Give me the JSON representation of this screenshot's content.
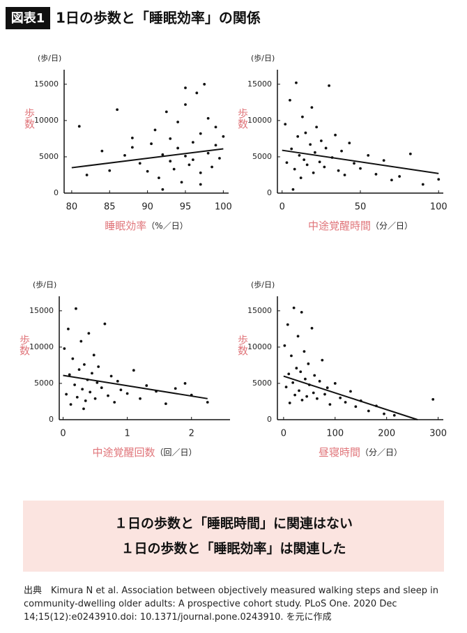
{
  "header": {
    "badge": "図表1",
    "title": "1日の歩数と「睡眠効率」の関係"
  },
  "chart_data": [
    {
      "type": "scatter",
      "y_unit": "(歩/日)",
      "ylabel": "歩数",
      "xlabel": "睡眠効率",
      "x_unit": "（%／日）",
      "xlim": [
        79,
        100.7
      ],
      "xticks": [
        80,
        85,
        90,
        95,
        100
      ],
      "ylim": [
        0,
        17000
      ],
      "yticks": [
        0,
        5000,
        10000,
        15000
      ],
      "color": "#111111",
      "x": [
        81,
        82,
        84,
        85,
        86,
        87,
        88,
        89,
        90,
        90.5,
        91,
        91.5,
        92,
        92.5,
        93,
        93,
        93.5,
        94,
        94,
        94.5,
        95,
        95,
        95.5,
        96,
        96,
        96.5,
        97,
        97,
        97.5,
        98,
        98,
        98.5,
        99,
        99,
        99.5,
        100,
        88,
        92,
        95,
        97
      ],
      "values": [
        9200,
        2500,
        5800,
        3100,
        11500,
        5200,
        7600,
        4100,
        3000,
        6800,
        8700,
        2100,
        5300,
        11200,
        4400,
        7500,
        3300,
        6200,
        9800,
        1500,
        5100,
        12200,
        3900,
        7000,
        4600,
        13800,
        2800,
        8200,
        15000,
        5500,
        10300,
        3600,
        6600,
        9100,
        4800,
        7800,
        6300,
        500,
        14500,
        1200
      ],
      "trend": {
        "x": [
          80,
          100
        ],
        "values": [
          3500,
          6100
        ]
      }
    },
    {
      "type": "scatter",
      "y_unit": "(歩/日)",
      "ylabel": "歩数",
      "xlabel": "中途覚醒時間",
      "x_unit": "（分／日）",
      "xlim": [
        -3,
        103
      ],
      "xticks": [
        0,
        50,
        100
      ],
      "ylim": [
        0,
        17000
      ],
      "yticks": [
        0,
        5000,
        10000,
        15000
      ],
      "color": "#111111",
      "x": [
        2,
        3,
        5,
        6,
        8,
        9,
        10,
        11,
        12,
        13,
        14,
        15,
        16,
        18,
        19,
        20,
        21,
        22,
        24,
        25,
        27,
        28,
        30,
        32,
        34,
        36,
        38,
        40,
        43,
        46,
        50,
        55,
        60,
        65,
        70,
        75,
        82,
        90,
        100,
        7
      ],
      "values": [
        9500,
        4200,
        12800,
        6100,
        3300,
        15200,
        7800,
        5200,
        2100,
        10500,
        4600,
        8300,
        3900,
        6700,
        11800,
        2800,
        5600,
        9100,
        4300,
        7200,
        3600,
        6200,
        14800,
        4900,
        8000,
        3100,
        5800,
        2500,
        6900,
        4100,
        3400,
        5200,
        2600,
        4500,
        1800,
        2300,
        5400,
        1200,
        1900,
        500
      ],
      "trend": {
        "x": [
          0,
          100
        ],
        "values": [
          5900,
          2700
        ]
      }
    },
    {
      "type": "scatter",
      "y_unit": "(歩/日)",
      "ylabel": "歩数",
      "xlabel": "中途覚醒回数",
      "x_unit": "（回／日）",
      "xlim": [
        -0.06,
        2.6
      ],
      "xticks": [
        0,
        1,
        2
      ],
      "ylim": [
        0,
        17000
      ],
      "yticks": [
        0,
        5000,
        10000,
        15000
      ],
      "color": "#111111",
      "x": [
        0.02,
        0.05,
        0.08,
        0.1,
        0.12,
        0.15,
        0.18,
        0.2,
        0.22,
        0.25,
        0.28,
        0.3,
        0.33,
        0.35,
        0.38,
        0.4,
        0.42,
        0.45,
        0.48,
        0.5,
        0.53,
        0.55,
        0.6,
        0.65,
        0.7,
        0.75,
        0.8,
        0.85,
        0.9,
        1.0,
        1.1,
        1.2,
        1.3,
        1.45,
        1.6,
        1.75,
        1.9,
        2.0,
        2.25,
        0.32
      ],
      "values": [
        9800,
        3500,
        12500,
        6200,
        2100,
        8400,
        4800,
        15300,
        3100,
        6900,
        10800,
        4200,
        7600,
        2600,
        5500,
        11900,
        3800,
        6400,
        8900,
        2900,
        5100,
        7300,
        4400,
        13200,
        3300,
        6000,
        2400,
        5300,
        4100,
        3600,
        6800,
        2900,
        4700,
        3900,
        2200,
        4300,
        5000,
        3400,
        2400,
        1500
      ],
      "trend": {
        "x": [
          0,
          2.25
        ],
        "values": [
          6100,
          2900
        ]
      }
    },
    {
      "type": "scatter",
      "y_unit": "(歩/日)",
      "ylabel": "歩数",
      "xlabel": "昼寝時間",
      "x_unit": "（分／日）",
      "xlim": [
        -12,
        310
      ],
      "xticks": [
        0,
        100,
        200,
        300
      ],
      "ylim": [
        0,
        17000
      ],
      "yticks": [
        0,
        5000,
        10000,
        15000
      ],
      "color": "#111111",
      "x": [
        2,
        5,
        8,
        10,
        12,
        15,
        18,
        20,
        22,
        25,
        28,
        30,
        33,
        36,
        40,
        42,
        45,
        48,
        50,
        55,
        58,
        60,
        65,
        70,
        75,
        80,
        85,
        90,
        100,
        110,
        120,
        130,
        140,
        150,
        165,
        180,
        195,
        215,
        290,
        35
      ],
      "values": [
        10200,
        4500,
        13100,
        6300,
        2300,
        8800,
        5100,
        15400,
        3400,
        7100,
        11500,
        4000,
        6600,
        2700,
        9400,
        5600,
        3200,
        7700,
        4800,
        12600,
        3700,
        6100,
        2900,
        5300,
        8200,
        3500,
        4400,
        2100,
        5000,
        3000,
        2400,
        3900,
        1800,
        2600,
        1200,
        1900,
        800,
        600,
        2800,
        14800
      ],
      "trend": {
        "x": [
          0,
          130,
          260
        ],
        "values": [
          6000,
          3000,
          0
        ]
      }
    }
  ],
  "conclusion": [
    "１日の歩数と「睡眠時間」に関連はない",
    "１日の歩数と「睡眠効率」は関連した"
  ],
  "source": "出典　Kimura N et al. Association between objectively measured walking steps and sleep in community-dwelling older adults: A prospective cohort study.  PLoS One. 2020 Dec 14;15(12):e0243910.doi: 10.1371/journal.pone.0243910. を元に作成"
}
